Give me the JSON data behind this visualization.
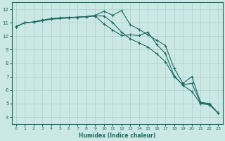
{
  "xlabel": "Humidex (Indice chaleur)",
  "bg_color": "#cce8e5",
  "line_color": "#1a6b62",
  "grid_color": "#aacfcc",
  "xlim": [
    -0.5,
    23.5
  ],
  "ylim": [
    3.5,
    12.5
  ],
  "yticks": [
    4,
    5,
    6,
    7,
    8,
    9,
    10,
    11,
    12
  ],
  "xticks": [
    0,
    1,
    2,
    3,
    4,
    5,
    6,
    7,
    8,
    9,
    10,
    11,
    12,
    13,
    14,
    15,
    16,
    17,
    18,
    19,
    20,
    21,
    22,
    23
  ],
  "series1_x": [
    0,
    1,
    2,
    3,
    4,
    5,
    6,
    7,
    8,
    9,
    10,
    11,
    12,
    13,
    14,
    15,
    16,
    17,
    18,
    19,
    20,
    21,
    22,
    23
  ],
  "series1_y": [
    10.7,
    11.0,
    11.05,
    11.15,
    11.3,
    11.35,
    11.4,
    11.4,
    11.45,
    11.5,
    10.9,
    10.45,
    10.05,
    10.1,
    10.05,
    10.3,
    9.4,
    8.7,
    7.05,
    6.35,
    5.9,
    5.0,
    4.9,
    4.3
  ],
  "series2_x": [
    0,
    1,
    2,
    3,
    4,
    5,
    6,
    7,
    8,
    9,
    10,
    11,
    12,
    13,
    14,
    15,
    16,
    17,
    18,
    19,
    20,
    21,
    22,
    23
  ],
  "series2_y": [
    10.7,
    11.0,
    11.05,
    11.2,
    11.3,
    11.35,
    11.38,
    11.42,
    11.45,
    11.5,
    11.5,
    11.0,
    10.3,
    9.8,
    9.5,
    9.2,
    8.7,
    8.1,
    7.0,
    6.4,
    6.5,
    5.05,
    4.95,
    4.3
  ],
  "series3_x": [
    0,
    1,
    2,
    3,
    4,
    5,
    6,
    7,
    8,
    9,
    10,
    11,
    12,
    13,
    14,
    15,
    16,
    17,
    18,
    19,
    20,
    21,
    22,
    23
  ],
  "series3_y": [
    10.7,
    11.0,
    11.05,
    11.15,
    11.25,
    11.3,
    11.35,
    11.4,
    11.45,
    11.55,
    11.85,
    11.55,
    11.9,
    10.85,
    10.5,
    10.1,
    9.7,
    9.3,
    7.6,
    6.5,
    7.0,
    5.1,
    5.0,
    4.3
  ]
}
